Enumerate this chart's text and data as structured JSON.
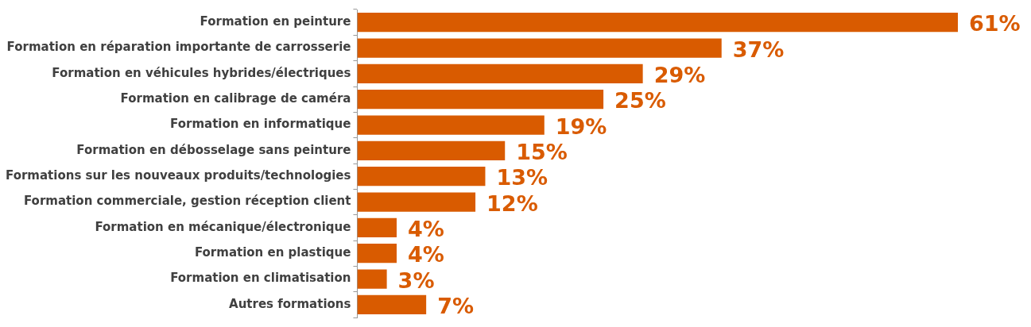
{
  "chart_data": {
    "type": "bar",
    "orientation": "horizontal",
    "categories": [
      "Formation en peinture",
      "Formation en réparation importante de carrosserie",
      "Formation en véhicules hybrides/électriques",
      "Formation en calibrage de caméra",
      "Formation en informatique",
      "Formation en débosselage sans peinture",
      "Formations sur les nouveaux produits/technologies",
      "Formation commerciale, gestion réception client",
      "Formation en mécanique/électronique",
      "Formation en plastique",
      "Formation en climatisation",
      "Autres formations"
    ],
    "values": [
      61,
      37,
      29,
      25,
      19,
      15,
      13,
      12,
      4,
      4,
      3,
      7
    ],
    "value_labels": [
      "61%",
      "37%",
      "29%",
      "25%",
      "19%",
      "15%",
      "13%",
      "12%",
      "4%",
      "4%",
      "3%",
      "7%"
    ],
    "color": "#d95b00",
    "legend": false
  }
}
